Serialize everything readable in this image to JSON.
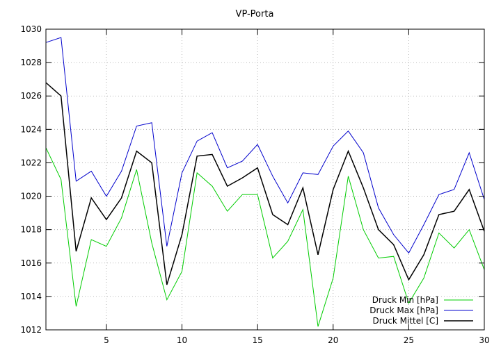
{
  "chart_data": {
    "type": "line",
    "title": "VP-Porta",
    "xlabel": "",
    "ylabel": "",
    "xlim": [
      1,
      30
    ],
    "ylim": [
      1012,
      1030
    ],
    "x": [
      1,
      2,
      3,
      4,
      5,
      6,
      7,
      8,
      9,
      10,
      11,
      12,
      13,
      14,
      15,
      16,
      17,
      18,
      19,
      20,
      21,
      22,
      23,
      24,
      25,
      26,
      27,
      28,
      29,
      30
    ],
    "x_ticks": [
      5,
      10,
      15,
      20,
      25,
      30
    ],
    "y_ticks": [
      1012,
      1014,
      1016,
      1018,
      1020,
      1022,
      1024,
      1026,
      1028,
      1030
    ],
    "grid": true,
    "legend_position": "bottom-right",
    "series": [
      {
        "name": "Druck Min [hPa]",
        "color": "#00cc00",
        "values": [
          1022.9,
          1021.0,
          1013.4,
          1017.4,
          1017.0,
          1018.7,
          1021.6,
          1017.2,
          1013.8,
          1015.5,
          1021.4,
          1020.6,
          1019.1,
          1020.1,
          1020.1,
          1016.3,
          1017.3,
          1019.2,
          1012.2,
          1015.1,
          1021.2,
          1018.0,
          1016.3,
          1016.4,
          1013.6,
          1015.1,
          1017.8,
          1016.9,
          1018.0,
          1015.6
        ]
      },
      {
        "name": "Druck Max [hPa]",
        "color": "#0000cc",
        "values": [
          1029.2,
          1029.5,
          1020.9,
          1021.5,
          1020.0,
          1021.5,
          1024.2,
          1024.4,
          1017.0,
          1021.4,
          1023.3,
          1023.8,
          1021.7,
          1022.1,
          1023.1,
          1021.2,
          1019.6,
          1021.4,
          1021.3,
          1023.0,
          1023.9,
          1022.6,
          1019.3,
          1017.7,
          1016.6,
          1018.3,
          1020.1,
          1020.4,
          1022.6,
          1019.8
        ]
      },
      {
        "name": "Druck Mittel [C]",
        "color": "#000000",
        "values": [
          1026.8,
          1026.0,
          1016.7,
          1019.9,
          1018.6,
          1019.9,
          1022.7,
          1022.0,
          1014.7,
          1017.7,
          1022.4,
          1022.5,
          1020.6,
          1021.1,
          1021.7,
          1018.9,
          1018.3,
          1020.5,
          1016.5,
          1020.4,
          1022.7,
          1020.5,
          1018.0,
          1017.1,
          1015.0,
          1016.5,
          1018.9,
          1019.1,
          1020.4,
          1017.9
        ]
      }
    ]
  }
}
